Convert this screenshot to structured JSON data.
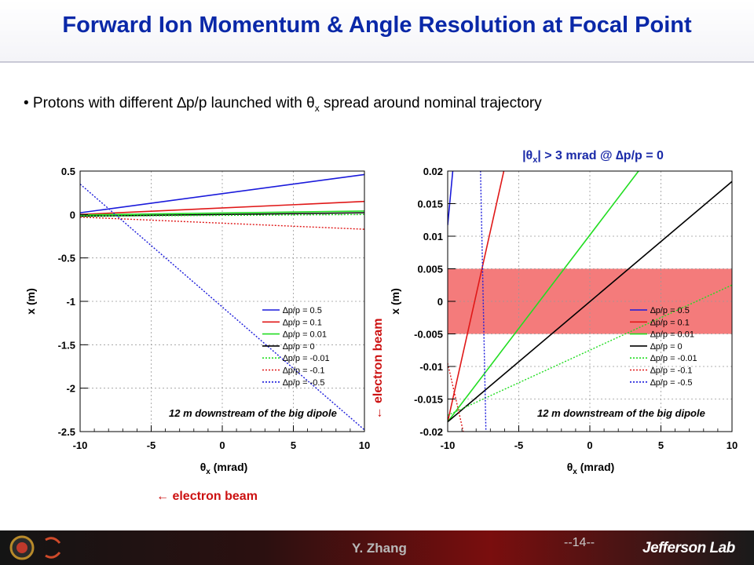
{
  "slide": {
    "title": "Forward Ion Momentum & Angle Resolution at Focal Point",
    "bullet_prefix": "• Protons with different ",
    "bullet_dp": "∆p/p",
    "bullet_mid": " launched with ",
    "bullet_theta": "θ",
    "bullet_theta_sub": "x",
    "bullet_suffix": " spread around nominal trajectory",
    "arrow_label_left": "← electron beam",
    "arrow_label_right": "← electron beam",
    "right_plot_note_prefix": "|θ",
    "right_plot_note_sub": "x",
    "right_plot_note_suffix": "| > 3 mrad @ ∆p/p = 0",
    "footer_author": "Y. Zhang",
    "footer_page": "--14--",
    "footer_lab": "Jefferson Lab",
    "colors": {
      "title": "#0a28a8",
      "annotation": "#cc1111",
      "band": "#f47b7b"
    }
  },
  "chart_data": [
    {
      "type": "line",
      "xlabel_main": "θ",
      "xlabel_sub": "x",
      "xlabel_unit": " (mrad)",
      "ylabel": "x (m)",
      "xlim": [
        -10,
        10
      ],
      "ylim": [
        -2.5,
        0.5
      ],
      "xticks": [
        "-10",
        "-5",
        "0",
        "5",
        "10"
      ],
      "yticks": [
        "0.5",
        "0",
        "-0.5",
        "-1",
        "-1.5",
        "-2",
        "-2.5"
      ],
      "annotation": "12 m downstream of the big dipole",
      "grid": true,
      "legend_position": "bottom-right",
      "series": [
        {
          "name": "∆p/p = 0.5",
          "color": "#1a1adb",
          "dash": false,
          "x": [
            -10,
            10
          ],
          "y": [
            0.02,
            0.46
          ]
        },
        {
          "name": "∆p/p = 0.1",
          "color": "#e01818",
          "dash": false,
          "x": [
            -10,
            10
          ],
          "y": [
            0.0,
            0.15
          ]
        },
        {
          "name": "∆p/p = 0.01",
          "color": "#22dd22",
          "dash": false,
          "x": [
            -10,
            10
          ],
          "y": [
            -0.005,
            0.04
          ]
        },
        {
          "name": "∆p/p = 0",
          "color": "#000000",
          "dash": false,
          "x": [
            -10,
            10
          ],
          "y": [
            -0.02,
            0.02
          ]
        },
        {
          "name": "∆p/p = -0.01",
          "color": "#22dd22",
          "dash": true,
          "x": [
            -10,
            10
          ],
          "y": [
            -0.02,
            0.0
          ]
        },
        {
          "name": "∆p/p = -0.1",
          "color": "#e01818",
          "dash": true,
          "x": [
            -10,
            10
          ],
          "y": [
            -0.03,
            -0.17
          ]
        },
        {
          "name": "∆p/p = -0.5",
          "color": "#1a1adb",
          "dash": true,
          "x": [
            -10,
            10
          ],
          "y": [
            0.35,
            -2.48
          ]
        }
      ]
    },
    {
      "type": "line",
      "xlabel_main": "θ",
      "xlabel_sub": "x",
      "xlabel_unit": " (mrad)",
      "ylabel": "x (m)",
      "xlim": [
        -10,
        10
      ],
      "ylim": [
        -0.02,
        0.02
      ],
      "xticks": [
        "-10",
        "-5",
        "0",
        "5",
        "10"
      ],
      "yticks": [
        "0.02",
        "0.015",
        "0.01",
        "0.005",
        "0",
        "-0.005",
        "-0.01",
        "-0.015",
        "-0.02"
      ],
      "annotation": "12 m downstream of the big dipole",
      "grid": true,
      "legend_position": "bottom-right",
      "band": {
        "y": [
          -0.005,
          0.005
        ]
      },
      "series": [
        {
          "name": "∆p/p = 0.5",
          "color": "#1a1adb",
          "dash": false,
          "x": [
            -10,
            -9.6
          ],
          "y": [
            0.0117,
            0.021
          ]
        },
        {
          "name": "∆p/p = 0.1",
          "color": "#e01818",
          "dash": false,
          "x": [
            -10,
            -6.0
          ],
          "y": [
            -0.0185,
            0.0205
          ]
        },
        {
          "name": "∆p/p = 0.01",
          "color": "#22dd22",
          "dash": false,
          "x": [
            -10,
            3.6
          ],
          "y": [
            -0.0185,
            0.0205
          ]
        },
        {
          "name": "∆p/p = 0",
          "color": "#000000",
          "dash": false,
          "x": [
            -10,
            10
          ],
          "y": [
            -0.0185,
            0.0184
          ]
        },
        {
          "name": "∆p/p = -0.01",
          "color": "#22dd22",
          "dash": true,
          "x": [
            -10,
            10
          ],
          "y": [
            -0.0175,
            0.0025
          ]
        },
        {
          "name": "∆p/p = -0.1",
          "color": "#e01818",
          "dash": true,
          "x": [
            -10,
            -8.8
          ],
          "y": [
            -0.0095,
            -0.021
          ]
        },
        {
          "name": "∆p/p = -0.5",
          "color": "#1a1adb",
          "dash": true,
          "x": [
            -7.7,
            -7.3
          ],
          "y": [
            0.021,
            -0.021
          ]
        }
      ]
    }
  ]
}
